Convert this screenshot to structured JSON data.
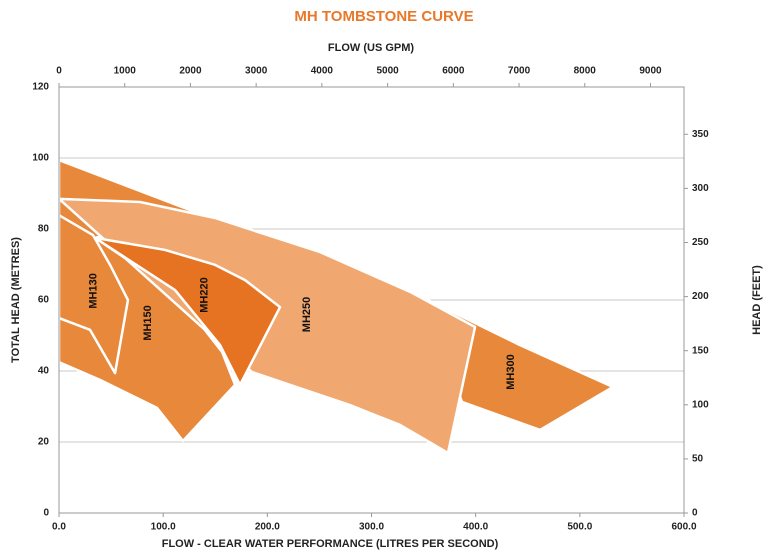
{
  "chart_data": {
    "type": "polygon",
    "title": "MH TOMBSTONE CURVE",
    "xlabel": "FLOW - CLEAR WATER PERFORMANCE (LITRES PER SECOND)",
    "ylabel": "TOTAL HEAD (METRES)",
    "x2label": "FLOW (US GPM)",
    "y2label": "HEAD (FEET)",
    "xlim": [
      0,
      600
    ],
    "xticks": [
      {
        "value": 0,
        "label": "0.0"
      },
      {
        "value": 100,
        "label": "100.0"
      },
      {
        "value": 200,
        "label": "200.0"
      },
      {
        "value": 300,
        "label": "300.0"
      },
      {
        "value": 400,
        "label": "400.0"
      },
      {
        "value": 500,
        "label": "500.0"
      },
      {
        "value": 600,
        "label": "600.0"
      }
    ],
    "ylim": [
      0,
      120
    ],
    "yticks": [
      0,
      20,
      40,
      60,
      80,
      100,
      120
    ],
    "x2lim": [
      0,
      9510
    ],
    "x2ticks": [
      0,
      1000,
      2000,
      3000,
      4000,
      5000,
      6000,
      7000,
      8000,
      9000
    ],
    "y2lim": [
      0,
      393.7
    ],
    "y2ticks": [
      0,
      50,
      100,
      150,
      200,
      250,
      300,
      350
    ],
    "grid": true,
    "series": [
      {
        "name": "MH300",
        "color": "#e8883a",
        "x": [
          346.6,
          442.6,
          531.8,
          461.8,
          386.9
        ],
        "y": [
          61.1,
          47.3,
          35.5,
          23.4,
          31.3
        ]
      },
      {
        "name": "MH150",
        "color": "#e8883a",
        "x": [
          0,
          130.6,
          34.6,
          111.4,
          156.5,
          169,
          119,
          94.1,
          39.4,
          0
        ],
        "y": [
          99.4,
          84.8,
          77.5,
          62.3,
          45.4,
          36.1,
          20.3,
          29.6,
          37.5,
          42.5
        ]
      },
      {
        "name": "MH250",
        "color": "#f0a870",
        "x": [
          0,
          77.8,
          149.8,
          250.6,
          337,
          399.4,
          373.4,
          327.4,
          279.4,
          185.3
        ],
        "y": [
          88.5,
          87.6,
          83.1,
          73.5,
          62.3,
          52.4,
          16.9,
          24.8,
          30.4,
          39.7
        ]
      },
      {
        "name": "MH220",
        "color": "#e67322",
        "x": [
          34.6,
          101.8,
          149.8,
          178.6,
          212.2,
          173.8,
          154.6,
          111.4
        ],
        "y": [
          77.5,
          74.1,
          69.9,
          65.6,
          58.0,
          36.1,
          47.3,
          62.8
        ]
      },
      {
        "name": "MH130",
        "color": "#e8883a",
        "x": [
          0,
          32.6,
          49,
          66.2,
          53.8,
          29.8,
          0
        ],
        "y": [
          83.9,
          78.3,
          69.9,
          60,
          39.4,
          51.6,
          54.9
        ]
      }
    ]
  }
}
